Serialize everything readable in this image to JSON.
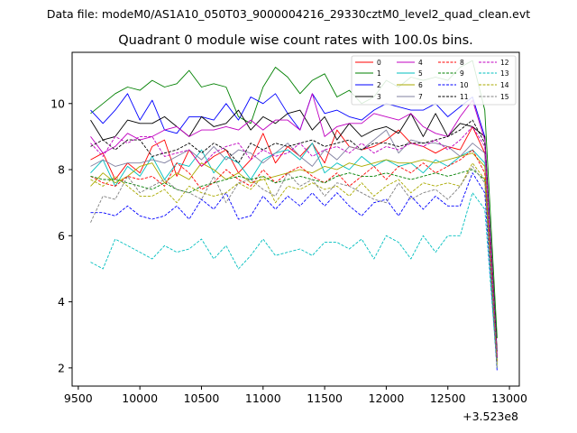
{
  "figure": {
    "suptitle": "Data file: modeM0/AS1A10_050T03_9000004216_29330cztM0_level2_quad_clean.evt"
  },
  "chart_data": {
    "type": "line",
    "title": "Quadrant 0 module wise count rates with 100.0s bins.",
    "xlabel": "",
    "ylabel": "",
    "x_offset_label": "+3.523e8",
    "xlim": [
      9450,
      13080
    ],
    "ylim": [
      1.45,
      11.55
    ],
    "xticks": [
      9500,
      10000,
      10500,
      11000,
      11500,
      12000,
      12500,
      13000
    ],
    "xtick_labels": [
      "9500",
      "10000",
      "10500",
      "11000",
      "11500",
      "12000",
      "12500",
      "13000"
    ],
    "yticks": [
      2,
      4,
      6,
      8,
      10
    ],
    "ytick_labels": [
      "2",
      "4",
      "6",
      "8",
      "10"
    ],
    "grid": false,
    "legend_placement": "top-right",
    "x": [
      9600,
      9700,
      9800,
      9900,
      10000,
      10100,
      10200,
      10300,
      10400,
      10500,
      10600,
      10700,
      10800,
      10900,
      11000,
      11100,
      11200,
      11300,
      11400,
      11500,
      11600,
      11700,
      11800,
      11900,
      12000,
      12100,
      12200,
      12300,
      12400,
      12500,
      12600,
      12700,
      12800,
      12900
    ],
    "series": [
      {
        "name": "0",
        "color": "#ff0000",
        "dash": "solid",
        "values": [
          8.3,
          8.5,
          7.7,
          8.2,
          7.9,
          8.7,
          8.9,
          7.8,
          8.6,
          8.1,
          8.4,
          8.6,
          7.9,
          8.3,
          9.1,
          8.2,
          8.7,
          8.4,
          8.8,
          8.2,
          9.2,
          8.7,
          8.6,
          8.7,
          8.9,
          9.2,
          8.8,
          8.7,
          8.5,
          8.7,
          8.6,
          9.3,
          8.5,
          2.4
        ]
      },
      {
        "name": "1",
        "color": "#008000",
        "dash": "solid",
        "values": [
          9.7,
          10.0,
          10.3,
          10.5,
          10.4,
          10.7,
          10.5,
          10.6,
          11.0,
          10.5,
          10.6,
          10.5,
          9.6,
          9.4,
          10.5,
          11.1,
          10.8,
          10.3,
          10.7,
          10.9,
          10.2,
          10.4,
          10.0,
          10.2,
          10.7,
          10.5,
          10.8,
          10.7,
          10.8,
          10.7,
          11.1,
          11.3,
          9.8,
          2.9
        ]
      },
      {
        "name": "2",
        "color": "#0000ff",
        "dash": "solid",
        "values": [
          9.8,
          9.4,
          9.8,
          10.3,
          9.5,
          10.1,
          9.2,
          9.1,
          9.6,
          9.6,
          9.5,
          10.0,
          9.5,
          10.2,
          10.0,
          10.3,
          9.7,
          9.2,
          10.3,
          9.7,
          9.8,
          9.6,
          9.5,
          9.8,
          10.0,
          9.9,
          9.8,
          9.8,
          10.0,
          9.6,
          9.9,
          10.2,
          9.0,
          2.3
        ]
      },
      {
        "name": "3",
        "color": "#000000",
        "dash": "solid",
        "values": [
          9.5,
          8.9,
          9.0,
          9.5,
          9.4,
          9.4,
          9.6,
          9.3,
          9.0,
          9.6,
          9.3,
          9.4,
          9.8,
          9.2,
          9.6,
          9.4,
          9.7,
          9.8,
          9.2,
          9.6,
          8.9,
          9.4,
          9.0,
          9.2,
          9.3,
          9.1,
          9.7,
          9.0,
          9.7,
          9.0,
          9.4,
          9.3,
          9.0,
          2.5
        ]
      },
      {
        "name": "4",
        "color": "#c000c0",
        "dash": "solid",
        "values": [
          9.0,
          8.5,
          8.7,
          9.1,
          8.9,
          9.0,
          9.2,
          9.3,
          9.0,
          9.2,
          9.2,
          9.3,
          9.2,
          9.5,
          9.2,
          9.5,
          9.5,
          9.2,
          10.3,
          9.0,
          9.3,
          9.4,
          9.4,
          9.7,
          9.6,
          9.5,
          9.7,
          9.3,
          9.1,
          9.0,
          9.6,
          10.1,
          8.9,
          2.3
        ]
      },
      {
        "name": "5",
        "color": "#00bfbf",
        "dash": "solid",
        "values": [
          7.9,
          8.3,
          7.5,
          8.1,
          7.8,
          8.4,
          7.7,
          8.2,
          8.1,
          8.6,
          7.9,
          8.4,
          8.2,
          7.7,
          8.3,
          8.5,
          8.6,
          8.3,
          8.8,
          7.9,
          8.2,
          8.0,
          8.4,
          8.1,
          8.3,
          8.1,
          8.2,
          7.9,
          8.3,
          8.1,
          8.4,
          8.6,
          8.2,
          2.2
        ]
      },
      {
        "name": "6",
        "color": "#aaaa00",
        "dash": "solid",
        "values": [
          7.5,
          7.9,
          7.6,
          7.8,
          8.1,
          8.2,
          7.6,
          7.9,
          7.7,
          8.2,
          8.0,
          7.7,
          7.9,
          7.6,
          7.7,
          7.8,
          7.9,
          8.0,
          7.9,
          8.1,
          8.0,
          8.2,
          8.1,
          8.2,
          8.3,
          8.2,
          8.2,
          8.3,
          8.2,
          8.3,
          8.4,
          8.5,
          8.1,
          2.2
        ]
      },
      {
        "name": "7",
        "color": "#7f7f9f",
        "dash": "solid",
        "values": [
          8.1,
          8.3,
          8.1,
          8.2,
          8.2,
          8.3,
          8.2,
          8.4,
          8.6,
          8.3,
          8.7,
          8.3,
          8.6,
          8.5,
          8.2,
          8.5,
          8.8,
          8.4,
          8.1,
          8.6,
          8.3,
          8.7,
          8.6,
          8.9,
          9.2,
          8.5,
          8.9,
          8.8,
          8.8,
          8.7,
          8.4,
          8.8,
          8.5,
          2.3
        ]
      },
      {
        "name": "8",
        "color": "#ff0000",
        "dash": "dashed",
        "values": [
          7.8,
          7.6,
          7.5,
          7.8,
          7.7,
          7.8,
          7.5,
          8.2,
          7.9,
          7.4,
          7.6,
          8.0,
          7.7,
          7.5,
          8.0,
          7.6,
          7.9,
          8.1,
          7.8,
          7.6,
          7.9,
          7.5,
          7.8,
          8.1,
          7.7,
          8.1,
          7.9,
          8.2,
          7.9,
          8.1,
          8.3,
          8.6,
          7.9,
          2.2
        ]
      },
      {
        "name": "9",
        "color": "#008000",
        "dash": "dashed",
        "values": [
          7.8,
          7.7,
          7.7,
          7.6,
          7.5,
          7.4,
          7.6,
          7.4,
          7.3,
          7.5,
          7.6,
          7.7,
          7.8,
          7.7,
          7.8,
          7.6,
          7.7,
          7.8,
          7.7,
          7.6,
          7.8,
          7.9,
          7.8,
          7.8,
          7.9,
          7.8,
          7.7,
          7.8,
          7.9,
          7.8,
          7.9,
          8.0,
          7.7,
          2.1
        ]
      },
      {
        "name": "10",
        "color": "#0000ff",
        "dash": "dashed",
        "values": [
          6.7,
          6.7,
          6.6,
          6.9,
          6.6,
          6.5,
          6.6,
          6.9,
          6.5,
          7.1,
          6.8,
          7.3,
          6.5,
          6.6,
          7.2,
          6.8,
          7.2,
          6.9,
          7.3,
          6.9,
          7.3,
          6.9,
          6.6,
          7.0,
          7.1,
          6.6,
          7.2,
          6.8,
          7.2,
          6.9,
          6.9,
          7.9,
          7.3,
          1.9
        ]
      },
      {
        "name": "11",
        "color": "#000000",
        "dash": "dashed",
        "values": [
          8.7,
          8.9,
          8.6,
          8.9,
          8.9,
          8.4,
          8.5,
          8.6,
          8.8,
          8.5,
          8.8,
          8.6,
          8.2,
          8.8,
          8.6,
          8.8,
          8.7,
          8.8,
          8.9,
          8.7,
          8.8,
          8.9,
          8.6,
          8.8,
          8.8,
          8.7,
          8.8,
          8.8,
          8.9,
          9.0,
          9.2,
          9.5,
          8.8,
          2.3
        ]
      },
      {
        "name": "12",
        "color": "#c000c0",
        "dash": "dashed",
        "values": [
          8.8,
          8.4,
          9.0,
          8.8,
          9.0,
          9.0,
          8.4,
          8.5,
          8.6,
          8.1,
          8.5,
          8.7,
          8.8,
          8.3,
          8.6,
          8.4,
          8.5,
          8.8,
          8.4,
          8.6,
          8.7,
          8.5,
          8.8,
          8.5,
          8.7,
          8.6,
          8.8,
          8.7,
          8.9,
          8.6,
          8.9,
          9.3,
          8.7,
          2.3
        ]
      },
      {
        "name": "13",
        "color": "#00bfbf",
        "dash": "dashed",
        "values": [
          5.2,
          5.0,
          5.9,
          5.7,
          5.5,
          5.3,
          5.7,
          5.5,
          5.6,
          5.9,
          5.3,
          5.7,
          5.0,
          5.4,
          5.9,
          5.4,
          5.5,
          5.6,
          5.4,
          5.8,
          5.8,
          5.6,
          5.9,
          5.3,
          6.0,
          5.8,
          5.3,
          6.0,
          5.5,
          6.0,
          6.0,
          7.3,
          6.8,
          2.0
        ]
      },
      {
        "name": "14",
        "color": "#aaaa00",
        "dash": "dashed",
        "values": [
          7.7,
          7.5,
          7.8,
          7.5,
          7.2,
          7.2,
          7.4,
          7.0,
          7.5,
          7.3,
          7.2,
          7.3,
          7.6,
          7.4,
          7.8,
          7.0,
          7.5,
          7.4,
          7.6,
          7.4,
          7.5,
          7.2,
          7.6,
          7.2,
          7.5,
          7.7,
          7.3,
          7.6,
          7.5,
          7.6,
          7.5,
          8.2,
          7.7,
          2.1
        ]
      },
      {
        "name": "15",
        "color": "#808080",
        "dash": "dashed",
        "values": [
          6.4,
          7.2,
          7.1,
          7.8,
          7.3,
          7.5,
          7.7,
          7.4,
          7.3,
          7.1,
          7.8,
          7.0,
          7.6,
          7.7,
          7.4,
          7.2,
          7.9,
          7.5,
          7.7,
          7.2,
          7.6,
          7.5,
          7.3,
          7.1,
          7.0,
          7.6,
          7.1,
          7.3,
          7.4,
          7.1,
          7.5,
          8.1,
          7.6,
          2.0
        ]
      }
    ]
  }
}
